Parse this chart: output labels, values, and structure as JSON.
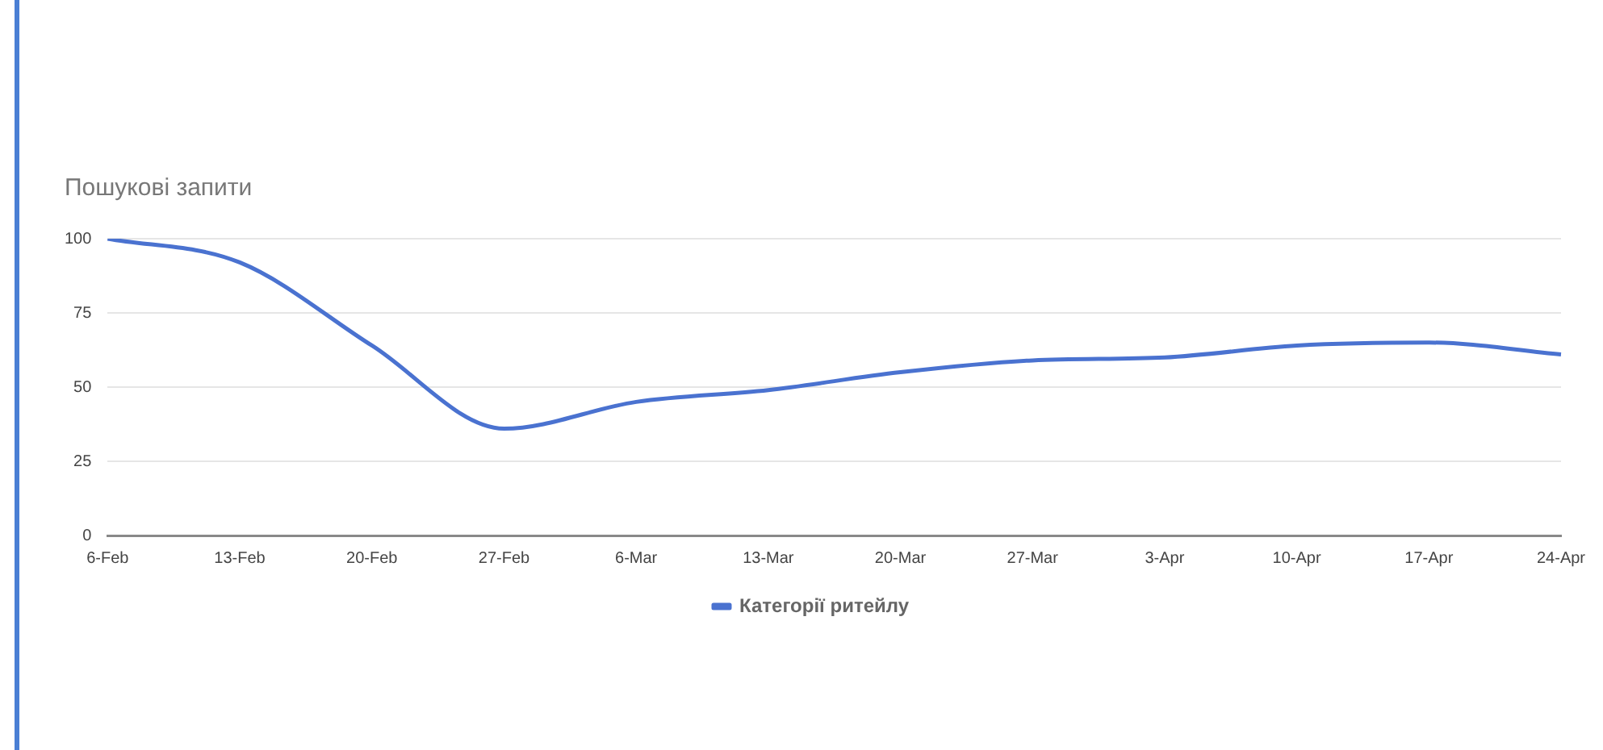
{
  "chart_data": {
    "type": "line",
    "ylabel": "Пошукові запити",
    "categories": [
      "6-Feb",
      "13-Feb",
      "20-Feb",
      "27-Feb",
      "6-Mar",
      "13-Mar",
      "20-Mar",
      "27-Mar",
      "3-Apr",
      "10-Apr",
      "17-Apr",
      "24-Apr"
    ],
    "series": [
      {
        "name": "Категорії ритейлу",
        "color": "#4a72d0",
        "values": [
          100,
          92,
          64,
          36,
          45,
          49,
          55,
          59,
          60,
          64,
          65,
          61
        ]
      }
    ],
    "ylim": [
      0,
      100
    ],
    "yticks": [
      0,
      25,
      50,
      75,
      100
    ],
    "grid": "y",
    "legend": "bottom",
    "marker": "none",
    "line_style": "solid"
  }
}
